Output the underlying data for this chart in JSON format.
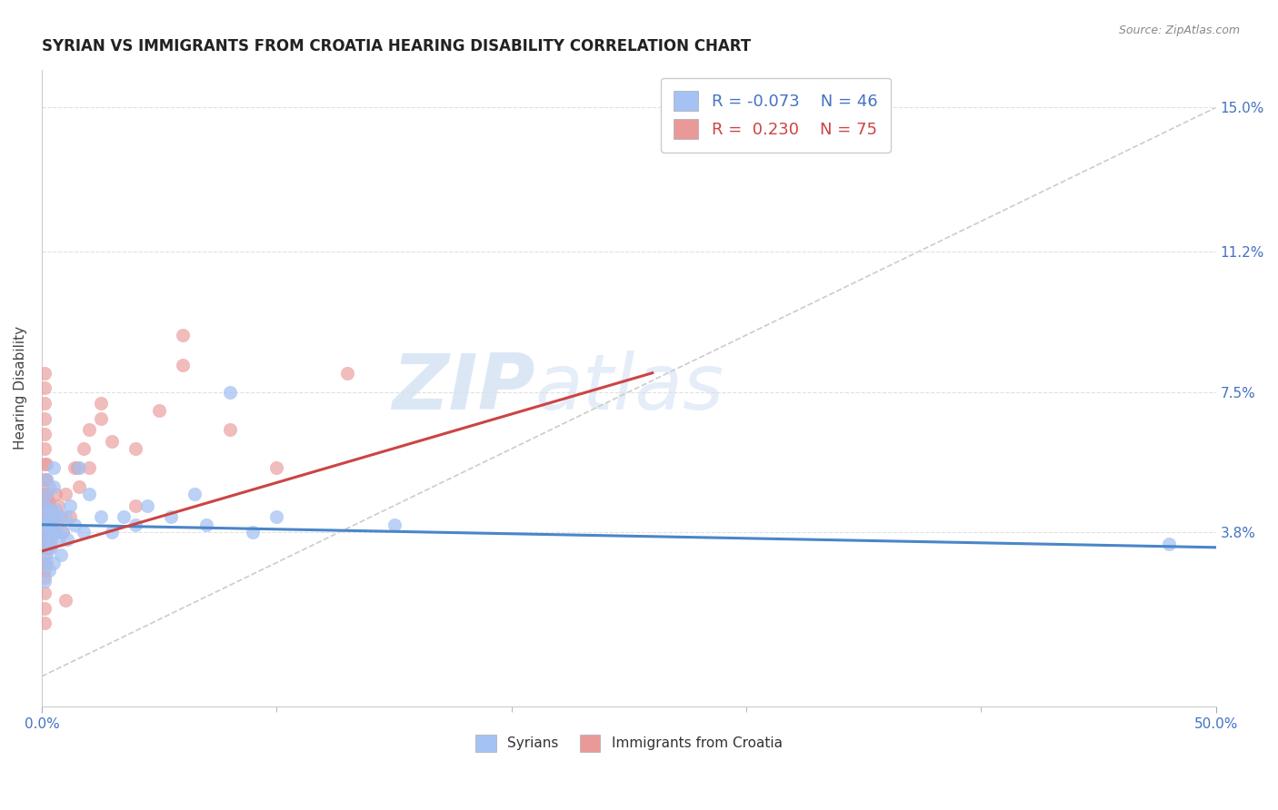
{
  "title": "SYRIAN VS IMMIGRANTS FROM CROATIA HEARING DISABILITY CORRELATION CHART",
  "source": "Source: ZipAtlas.com",
  "xlabel_syrians": "Syrians",
  "xlabel_croatia": "Immigrants from Croatia",
  "ylabel": "Hearing Disability",
  "xlim": [
    0,
    0.5
  ],
  "ylim": [
    -0.008,
    0.16
  ],
  "xticks": [
    0.0,
    0.5
  ],
  "xtick_labels": [
    "0.0%",
    "50.0%"
  ],
  "xticks_minor": [
    0.1,
    0.2,
    0.3,
    0.4
  ],
  "ytick_positions": [
    0.038,
    0.075,
    0.112,
    0.15
  ],
  "ytick_labels": [
    "3.8%",
    "7.5%",
    "11.2%",
    "15.0%"
  ],
  "blue_color": "#a4c2f4",
  "pink_color": "#ea9999",
  "blue_line_color": "#4a86c8",
  "pink_line_color": "#cc4444",
  "ref_line_color": "#cccccc",
  "watermark_zip": "ZIP",
  "watermark_atlas": "atlas",
  "watermark_color": "#c8d8f0",
  "grid_color": "#e0e0e0",
  "background_color": "#ffffff",
  "title_fontsize": 12,
  "axis_label_fontsize": 11,
  "tick_fontsize": 11,
  "legend_fontsize": 13,
  "blue_scatter_x": [
    0.001,
    0.001,
    0.001,
    0.001,
    0.001,
    0.002,
    0.002,
    0.002,
    0.002,
    0.002,
    0.003,
    0.003,
    0.003,
    0.003,
    0.004,
    0.004,
    0.004,
    0.005,
    0.005,
    0.005,
    0.006,
    0.006,
    0.007,
    0.007,
    0.008,
    0.009,
    0.01,
    0.011,
    0.012,
    0.014,
    0.016,
    0.018,
    0.02,
    0.025,
    0.03,
    0.035,
    0.04,
    0.045,
    0.055,
    0.065,
    0.07,
    0.09,
    0.1,
    0.15,
    0.08,
    0.48
  ],
  "blue_scatter_y": [
    0.035,
    0.03,
    0.025,
    0.04,
    0.045,
    0.038,
    0.032,
    0.042,
    0.048,
    0.052,
    0.036,
    0.04,
    0.044,
    0.028,
    0.038,
    0.042,
    0.034,
    0.05,
    0.055,
    0.03,
    0.038,
    0.044,
    0.036,
    0.042,
    0.032,
    0.038,
    0.042,
    0.036,
    0.045,
    0.04,
    0.055,
    0.038,
    0.048,
    0.042,
    0.038,
    0.042,
    0.04,
    0.045,
    0.042,
    0.048,
    0.04,
    0.038,
    0.042,
    0.04,
    0.075,
    0.035
  ],
  "pink_scatter_x": [
    0.001,
    0.001,
    0.001,
    0.001,
    0.001,
    0.001,
    0.001,
    0.001,
    0.001,
    0.001,
    0.001,
    0.001,
    0.001,
    0.001,
    0.001,
    0.001,
    0.001,
    0.001,
    0.001,
    0.001,
    0.001,
    0.001,
    0.001,
    0.001,
    0.001,
    0.002,
    0.002,
    0.002,
    0.002,
    0.002,
    0.002,
    0.002,
    0.002,
    0.002,
    0.002,
    0.002,
    0.002,
    0.002,
    0.002,
    0.002,
    0.003,
    0.003,
    0.003,
    0.003,
    0.003,
    0.004,
    0.004,
    0.004,
    0.005,
    0.005,
    0.006,
    0.006,
    0.007,
    0.008,
    0.009,
    0.01,
    0.012,
    0.014,
    0.016,
    0.018,
    0.02,
    0.025,
    0.03,
    0.04,
    0.05,
    0.06,
    0.08,
    0.1,
    0.13,
    0.04,
    0.06,
    0.02,
    0.025,
    0.015,
    0.01
  ],
  "pink_scatter_y": [
    0.038,
    0.042,
    0.046,
    0.034,
    0.03,
    0.026,
    0.022,
    0.018,
    0.014,
    0.048,
    0.052,
    0.056,
    0.06,
    0.064,
    0.068,
    0.072,
    0.076,
    0.08,
    0.035,
    0.032,
    0.028,
    0.04,
    0.044,
    0.036,
    0.038,
    0.04,
    0.044,
    0.048,
    0.052,
    0.056,
    0.034,
    0.03,
    0.038,
    0.042,
    0.046,
    0.036,
    0.04,
    0.044,
    0.048,
    0.034,
    0.038,
    0.042,
    0.046,
    0.05,
    0.034,
    0.04,
    0.044,
    0.036,
    0.038,
    0.042,
    0.048,
    0.038,
    0.045,
    0.042,
    0.038,
    0.048,
    0.042,
    0.055,
    0.05,
    0.06,
    0.055,
    0.068,
    0.062,
    0.06,
    0.07,
    0.082,
    0.065,
    0.055,
    0.08,
    0.045,
    0.09,
    0.065,
    0.072,
    0.055,
    0.02
  ],
  "blue_trend_x": [
    0.0,
    0.5
  ],
  "blue_trend_y": [
    0.04,
    0.034
  ],
  "pink_trend_x": [
    0.0,
    0.26
  ],
  "pink_trend_y": [
    0.033,
    0.08
  ],
  "ref_line_x": [
    0.0,
    0.5
  ],
  "ref_line_y": [
    0.0,
    0.15
  ]
}
